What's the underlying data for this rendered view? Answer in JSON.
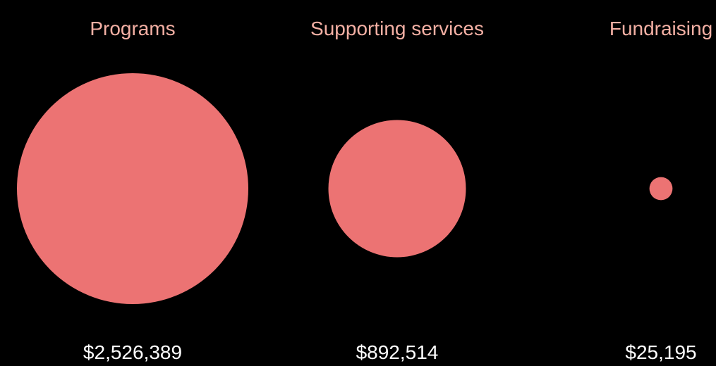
{
  "chart_data": {
    "type": "bubble",
    "categories": [
      "Programs",
      "Supporting services",
      "Fundraising"
    ],
    "values": [
      2526389,
      892514,
      25195
    ],
    "value_labels": [
      "$2,526,389",
      "$892,514",
      "$25,195"
    ],
    "title": "",
    "xlabel": "",
    "ylabel": "",
    "colors": {
      "bubble": "#ec7373",
      "category_label": "#f4b0a4",
      "value_label": "#ffffff",
      "background": "#000000"
    },
    "grid": false,
    "legend": "none"
  }
}
